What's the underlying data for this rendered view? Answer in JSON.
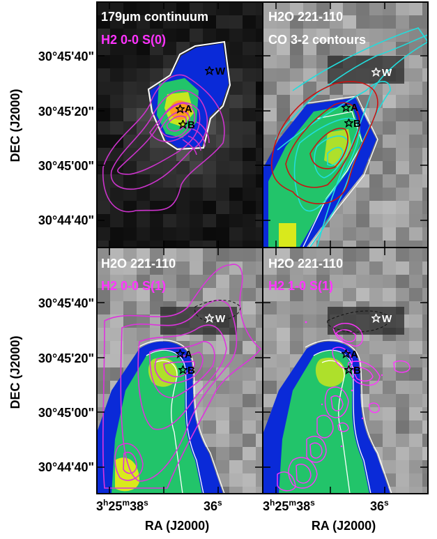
{
  "figure": {
    "y_axis_label": "DEC (J2000)",
    "x_axis_label": "RA (J2000)",
    "dec_ticks": [
      "30°45'40\"",
      "30°45'20\"",
      "30°45'00\"",
      "30°44'40\""
    ],
    "ra_ticks_left": {
      "main": "3h25m38s",
      "second": "36s"
    },
    "ra_ticks_right": {
      "main": "3h25m38s",
      "second": "36s"
    }
  },
  "panels": [
    {
      "id": "top-left",
      "title_line1": "179μm continuum",
      "title_line2": "H2 0-0 S(0)",
      "colors": {
        "title_line1": "#ffffff",
        "title_line2": "#ff33ff",
        "contour": "#cc33cc"
      }
    },
    {
      "id": "top-right",
      "title_line1": "H2O 221-110",
      "title_line2": "CO 3-2 contours",
      "colors": {
        "title_line1": "#ffffff",
        "title_line2": "#ffffff",
        "contour_red": "#cc1111",
        "contour_cyan": "#22dddd"
      }
    },
    {
      "id": "bottom-left",
      "title_line1": "H2O 221-110",
      "title_line2": "H2 0-0 S(1)",
      "colors": {
        "title_line1": "#ffffff",
        "title_line2": "#ff33ff",
        "contour": "#dd33dd"
      }
    },
    {
      "id": "bottom-right",
      "title_line1": "H2O 221-110",
      "title_line2": "H2 1-0 S(1)",
      "colors": {
        "title_line1": "#ffffff",
        "title_line2": "#ff33ff",
        "contour": "#ff33ff"
      }
    }
  ],
  "sources": [
    "W",
    "A",
    "B"
  ]
}
